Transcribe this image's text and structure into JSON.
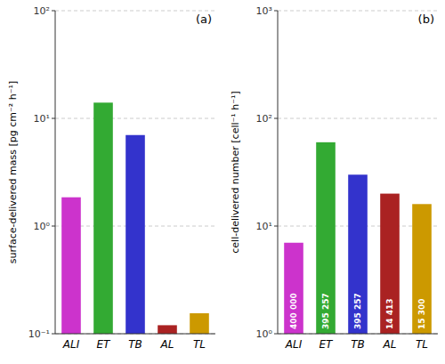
{
  "chart_data": [
    {
      "type": "bar",
      "title": "(a)",
      "categories": [
        "ALI",
        "ET",
        "TB",
        "AL",
        "TL"
      ],
      "values": [
        1.85,
        14.0,
        7.0,
        0.12,
        0.155
      ],
      "colors": [
        "#CC33CC",
        "#33AA33",
        "#3333CC",
        "#AA2222",
        "#CC9900"
      ],
      "ylabel": "surface-delivered mass [pg cm⁻² h⁻¹]",
      "log": "y",
      "ylim": [
        0.1,
        100
      ],
      "yticks": [
        {
          "value": 0.1,
          "label": "10⁻¹"
        },
        {
          "value": 1,
          "label": "10⁰"
        },
        {
          "value": 10,
          "label": "10¹"
        },
        {
          "value": 100,
          "label": "10²"
        }
      ],
      "grid": true
    },
    {
      "type": "bar",
      "title": "(b)",
      "categories": [
        "ALI",
        "ET",
        "TB",
        "AL",
        "TL"
      ],
      "values": [
        7.0,
        60.0,
        30.0,
        20.0,
        16.0
      ],
      "colors": [
        "#CC33CC",
        "#33AA33",
        "#3333CC",
        "#AA2222",
        "#CC9900"
      ],
      "ylabel": "cell-delivered number [cell⁻¹ h⁻¹]",
      "log": "y",
      "ylim": [
        1.0,
        1000
      ],
      "yticks": [
        {
          "value": 1,
          "label": "10⁰"
        },
        {
          "value": 10,
          "label": "10¹"
        },
        {
          "value": 100,
          "label": "10²"
        },
        {
          "value": 1000,
          "label": "10³"
        }
      ],
      "grid": true,
      "annotations": [
        "400 000",
        "395 257",
        "395 257",
        "14 413",
        "15 300"
      ]
    }
  ]
}
